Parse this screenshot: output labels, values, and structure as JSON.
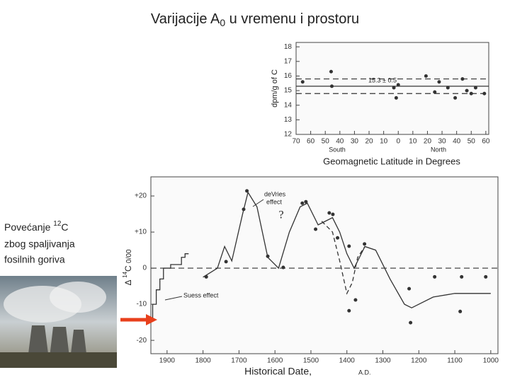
{
  "title": {
    "before": "Varijacije A",
    "subscript": "0",
    "after": " u vremenu i prostoru"
  },
  "caption": {
    "before": "Povećanje ",
    "superscript": "12",
    "after": "C",
    "lines": [
      "zbog spaljivanja",
      "fosilnih goriva"
    ]
  },
  "chart_data": [
    {
      "type": "scatter",
      "y_label": "dpm/g of C",
      "x_label": "Geomagnetic Latitude in Degrees",
      "annotations": [
        "South",
        "North",
        "15.3 ± 0.5"
      ],
      "xlim": [
        -70,
        62
      ],
      "ylim": [
        12,
        18.3
      ],
      "xticks": [
        {
          "value": -70,
          "label": "70"
        },
        {
          "value": -60,
          "label": "60"
        },
        {
          "value": -50,
          "label": "50"
        },
        {
          "value": -40,
          "label": "40"
        },
        {
          "value": -30,
          "label": "30"
        },
        {
          "value": -20,
          "label": "20"
        },
        {
          "value": -10,
          "label": "10"
        },
        0,
        10,
        20,
        30,
        40,
        50,
        60
      ],
      "yticks": [
        12,
        13,
        14,
        15,
        16,
        17,
        18
      ],
      "hlines": [
        {
          "value": 15.3,
          "style": "solid"
        },
        {
          "value": 15.8,
          "style": "dashed"
        },
        {
          "value": 14.8,
          "style": "dashed"
        }
      ],
      "series": [
        {
          "style": "points",
          "color": "#333333",
          "x": [
            -65.5,
            -46,
            -45.5,
            -3,
            -1.4,
            0,
            19,
            25,
            28,
            34,
            39,
            44,
            47,
            50,
            53,
            59
          ],
          "values": [
            15.6,
            16.3,
            15.3,
            15.2,
            14.5,
            15.4,
            16.0,
            14.9,
            15.6,
            15.2,
            14.5,
            15.8,
            15.0,
            14.8,
            15.2,
            14.8
          ]
        }
      ]
    },
    {
      "type": "scatter",
      "y_label": {
        "before": "Δ ",
        "superscript": "14",
        "after": "C ",
        "unit": "0/00"
      },
      "x_label": "Historical Date,",
      "x_unit": "A.D.",
      "annotations": [
        "deVries",
        "effect",
        "Suess effect",
        "?"
      ],
      "xlim": [
        1945,
        980
      ],
      "ylim": [
        -23.7,
        25.3
      ],
      "xticks": [
        1900,
        1800,
        1700,
        1600,
        1500,
        1400,
        1300,
        1200,
        1100,
        1000
      ],
      "yticks": [
        {
          "value": 20,
          "label": "+20"
        },
        {
          "value": 10,
          "label": "+10"
        },
        0,
        -10,
        -20
      ],
      "hlines": [
        {
          "value": 0,
          "style": "dashed"
        }
      ],
      "series": [
        {
          "style": "points",
          "color": "#333333",
          "x": [
            1791,
            1736,
            1687,
            1678,
            1620,
            1577,
            1524,
            1514,
            1487,
            1449,
            1439,
            1426,
            1394,
            1394,
            1376,
            1351,
            1227,
            1223,
            1156,
            1085,
            1081,
            1014
          ],
          "values": [
            -2.4,
            1.8,
            16.3,
            21.4,
            3.3,
            0.2,
            18,
            18.4,
            10.8,
            15.3,
            14.9,
            8.4,
            6.1,
            -11.8,
            -8.8,
            6.7,
            -5.7,
            -15.1,
            -2.4,
            -12,
            -2.4,
            -2.4
          ]
        },
        {
          "style": "line",
          "color": "#333333",
          "x": [
            1800,
            1760,
            1740,
            1720,
            1690,
            1675,
            1650,
            1620,
            1590,
            1560,
            1530,
            1510,
            1480,
            1460,
            1440,
            1420,
            1400,
            1380,
            1350,
            1320,
            1280,
            1240,
            1220,
            1200,
            1160,
            1100,
            1040,
            1000
          ],
          "values": [
            -2.5,
            0,
            6,
            2,
            15,
            21,
            17,
            3,
            0,
            10,
            17,
            18,
            12,
            13,
            14,
            10,
            4,
            0,
            6,
            5,
            -3,
            -10,
            -11,
            -10,
            -8,
            -7,
            -7,
            -7
          ]
        },
        {
          "style": "dashed",
          "color": "#333333",
          "x": [
            1470,
            1440,
            1420,
            1400,
            1385,
            1370,
            1350
          ],
          "values": [
            13,
            10,
            2,
            -7,
            -4,
            3,
            6
          ]
        },
        {
          "style": "line",
          "color": "#333333",
          "x": [
            1940,
            1940,
            1930,
            1930,
            1920,
            1920,
            1910,
            1910,
            1890,
            1890,
            1860,
            1860,
            1850,
            1850,
            1840
          ],
          "values": [
            -14,
            -10,
            -10,
            -6,
            -6,
            -3,
            -3,
            0,
            0,
            1,
            1,
            3,
            3,
            4,
            4
          ]
        }
      ]
    }
  ]
}
